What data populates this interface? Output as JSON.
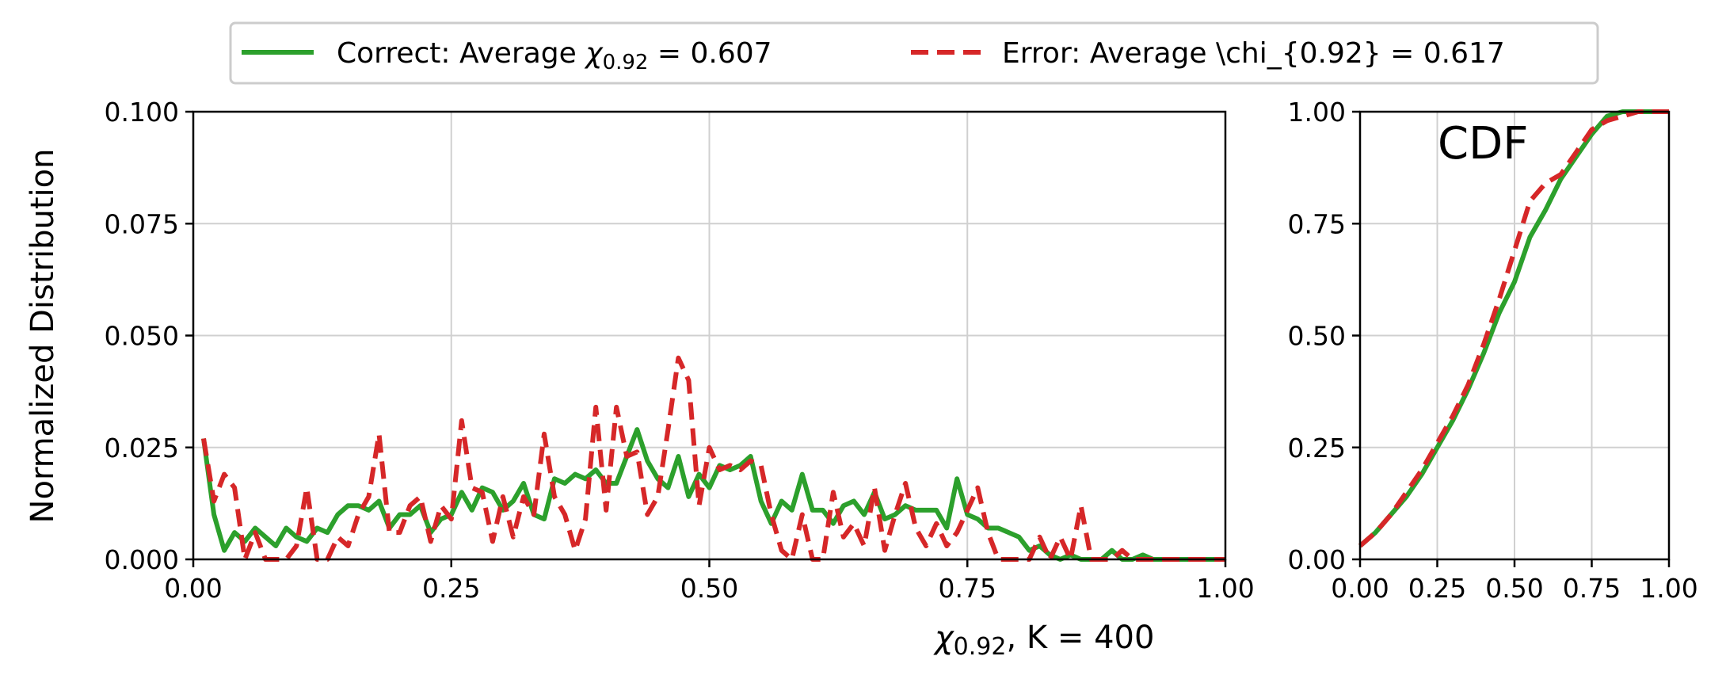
{
  "chart_data": [
    {
      "type": "line",
      "xlabel_symbol": "χ",
      "xlabel_sub": "0.92",
      "xlabel_rest": ", K = 400",
      "ylabel": "Normalized Distribution",
      "xlim": [
        0,
        1
      ],
      "ylim": [
        0,
        0.1
      ],
      "xticks": [
        "0.00",
        "0.25",
        "0.50",
        "0.75",
        "1.00"
      ],
      "yticks": [
        "0.000",
        "0.025",
        "0.050",
        "0.075",
        "0.100"
      ],
      "grid": true,
      "x": [
        0.01,
        0.02,
        0.03,
        0.04,
        0.05,
        0.06,
        0.07,
        0.08,
        0.09,
        0.1,
        0.11,
        0.12,
        0.13,
        0.14,
        0.15,
        0.16,
        0.17,
        0.18,
        0.19,
        0.2,
        0.21,
        0.22,
        0.23,
        0.24,
        0.25,
        0.26,
        0.27,
        0.28,
        0.29,
        0.3,
        0.31,
        0.32,
        0.33,
        0.34,
        0.35,
        0.36,
        0.37,
        0.38,
        0.39,
        0.4,
        0.41,
        0.42,
        0.43,
        0.44,
        0.45,
        0.46,
        0.47,
        0.48,
        0.49,
        0.5,
        0.51,
        0.52,
        0.53,
        0.54,
        0.55,
        0.56,
        0.57,
        0.58,
        0.59,
        0.6,
        0.61,
        0.62,
        0.63,
        0.64,
        0.65,
        0.66,
        0.67,
        0.68,
        0.69,
        0.7,
        0.71,
        0.72,
        0.73,
        0.74,
        0.75,
        0.76,
        0.77,
        0.78,
        0.79,
        0.8,
        0.81,
        0.82,
        0.83,
        0.84,
        0.85,
        0.86,
        0.87,
        0.88,
        0.89,
        0.9,
        0.91,
        0.92,
        0.93,
        0.94,
        0.95,
        0.96,
        0.97,
        0.98,
        0.99,
        1.0
      ],
      "series": [
        {
          "label_prefix": "Correct: Average ",
          "label_symbol": "χ",
          "label_sub": "0.92",
          "label_suffix": " = 0.607",
          "color": "#2ca02c",
          "style": "solid",
          "values": [
            0.027,
            0.01,
            0.002,
            0.006,
            0.004,
            0.007,
            0.005,
            0.003,
            0.007,
            0.005,
            0.004,
            0.007,
            0.006,
            0.01,
            0.012,
            0.012,
            0.011,
            0.013,
            0.007,
            0.01,
            0.01,
            0.012,
            0.006,
            0.009,
            0.01,
            0.015,
            0.011,
            0.016,
            0.015,
            0.011,
            0.013,
            0.017,
            0.01,
            0.009,
            0.018,
            0.017,
            0.019,
            0.018,
            0.02,
            0.017,
            0.017,
            0.023,
            0.029,
            0.022,
            0.018,
            0.016,
            0.023,
            0.014,
            0.019,
            0.016,
            0.021,
            0.02,
            0.021,
            0.023,
            0.013,
            0.008,
            0.013,
            0.011,
            0.019,
            0.011,
            0.011,
            0.008,
            0.012,
            0.013,
            0.01,
            0.015,
            0.009,
            0.01,
            0.012,
            0.011,
            0.011,
            0.011,
            0.007,
            0.018,
            0.01,
            0.009,
            0.007,
            0.007,
            0.006,
            0.005,
            0.002,
            0.003,
            0.001,
            0.0,
            0.001,
            0.0,
            0.0,
            0.0,
            0.002,
            0.0,
            0.0,
            0.001,
            0.0,
            0.0,
            0.0,
            0.0,
            0.0,
            0.0,
            0.0,
            0.0
          ]
        },
        {
          "label": "Error: Average \\chi_{0.92} = 0.617",
          "color": "#d62728",
          "style": "dashed",
          "values": [
            0.027,
            0.013,
            0.019,
            0.016,
            0.0,
            0.006,
            0.0,
            0.0,
            0.0,
            0.003,
            0.016,
            0.0,
            0.0,
            0.005,
            0.003,
            0.01,
            0.014,
            0.028,
            0.006,
            0.006,
            0.012,
            0.014,
            0.004,
            0.012,
            0.009,
            0.031,
            0.016,
            0.015,
            0.004,
            0.014,
            0.005,
            0.014,
            0.01,
            0.028,
            0.014,
            0.01,
            0.002,
            0.009,
            0.034,
            0.011,
            0.034,
            0.023,
            0.024,
            0.01,
            0.014,
            0.029,
            0.045,
            0.04,
            0.012,
            0.025,
            0.02,
            0.021,
            0.02,
            0.022,
            0.021,
            0.01,
            0.002,
            0.0,
            0.01,
            0.0,
            0.0,
            0.015,
            0.005,
            0.008,
            0.003,
            0.016,
            0.002,
            0.01,
            0.017,
            0.007,
            0.003,
            0.008,
            0.003,
            0.006,
            0.011,
            0.016,
            0.006,
            0.0,
            0.0,
            0.0,
            0.0,
            0.005,
            0.0,
            0.005,
            0.0,
            0.012,
            0.0,
            0.0,
            0.0,
            0.002,
            0.0,
            0.0,
            0.0,
            0.0,
            0.0,
            0.0,
            0.0,
            0.0,
            0.0,
            0.0
          ]
        }
      ],
      "legend": "top-center"
    },
    {
      "type": "line",
      "annotation": "CDF",
      "xlim": [
        0,
        1
      ],
      "ylim": [
        0,
        1
      ],
      "xticks": [
        "0.00",
        "0.25",
        "0.50",
        "0.75",
        "1.00"
      ],
      "yticks": [
        "0.00",
        "0.25",
        "0.50",
        "0.75",
        "1.00"
      ],
      "grid": true,
      "x": [
        0.0,
        0.05,
        0.1,
        0.15,
        0.2,
        0.25,
        0.3,
        0.35,
        0.4,
        0.45,
        0.5,
        0.55,
        0.6,
        0.65,
        0.7,
        0.75,
        0.8,
        0.85,
        0.9,
        0.95,
        1.0
      ],
      "series": [
        {
          "color": "#2ca02c",
          "style": "solid",
          "values": [
            0.03,
            0.06,
            0.1,
            0.14,
            0.19,
            0.25,
            0.31,
            0.38,
            0.46,
            0.55,
            0.62,
            0.72,
            0.78,
            0.85,
            0.9,
            0.95,
            0.99,
            1.0,
            1.0,
            1.0,
            1.0
          ]
        },
        {
          "color": "#d62728",
          "style": "dashed",
          "values": [
            0.03,
            0.06,
            0.1,
            0.15,
            0.2,
            0.26,
            0.32,
            0.39,
            0.48,
            0.58,
            0.69,
            0.8,
            0.84,
            0.86,
            0.91,
            0.96,
            0.98,
            0.99,
            1.0,
            1.0,
            1.0
          ]
        }
      ]
    }
  ]
}
